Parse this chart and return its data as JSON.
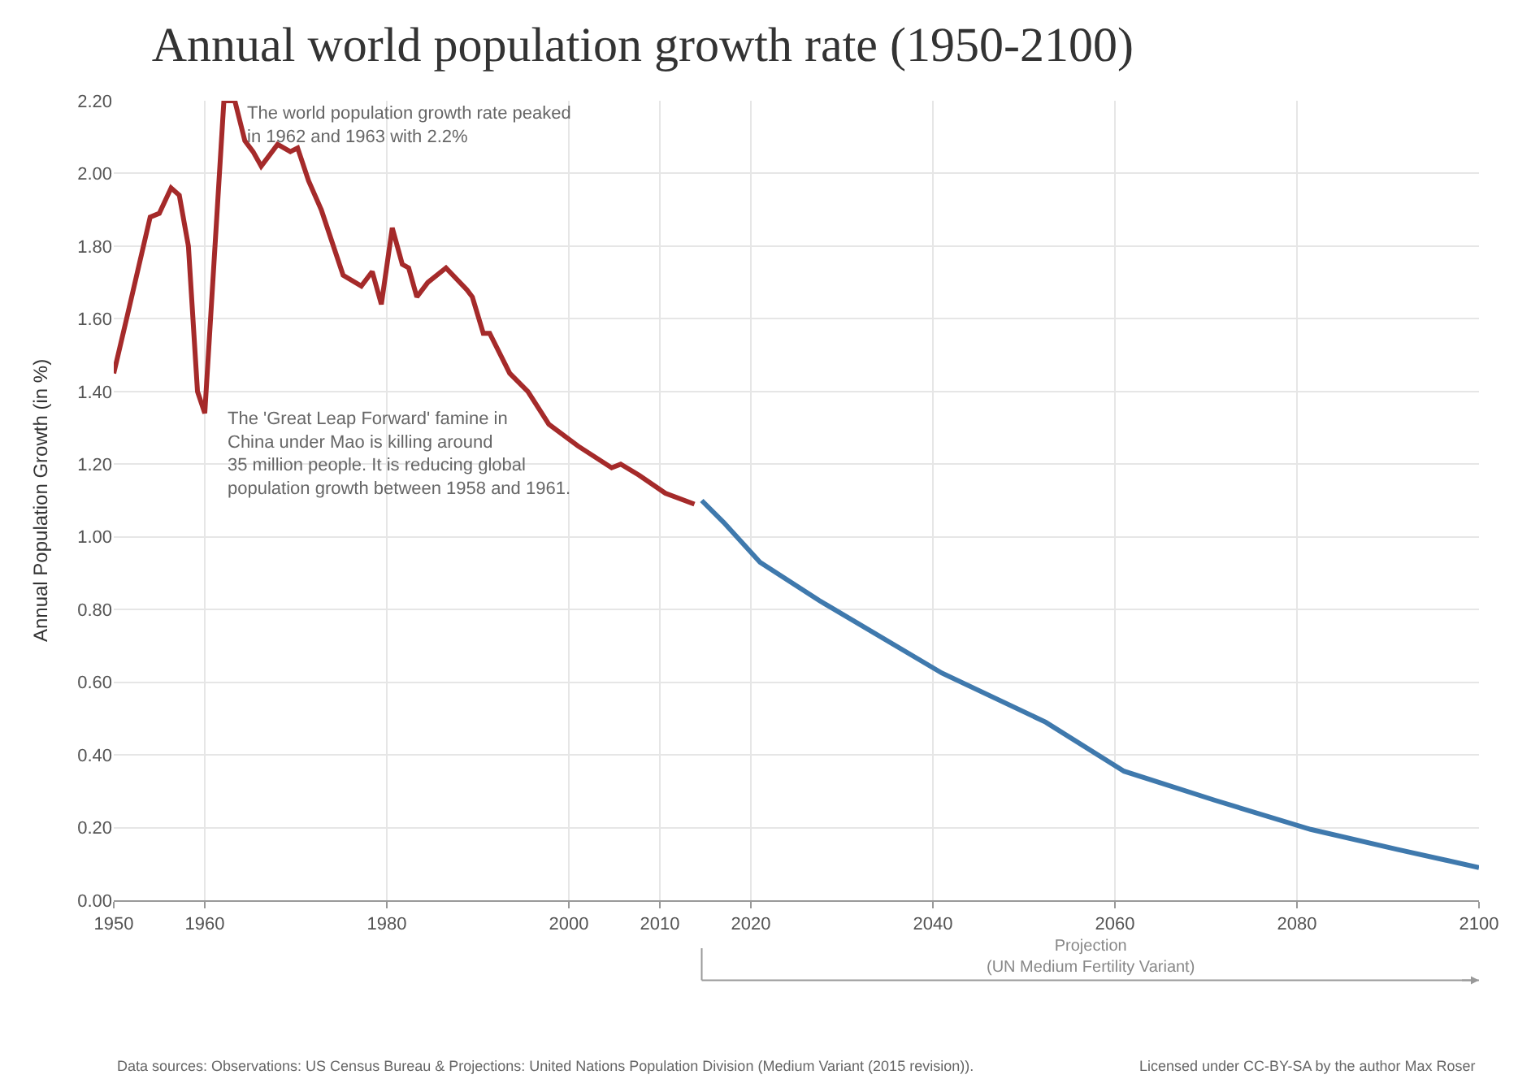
{
  "chart_data": {
    "type": "line",
    "title": "Annual world population growth rate (1950-2100)",
    "ylabel": "Annual Population Growth (in %)",
    "series": [
      {
        "color": "#a52a2a",
        "x": [
          1950,
          1951.5,
          1954,
          1955,
          1956.3,
          1957.2,
          1958.2,
          1959.2,
          1960,
          1962.1,
          1963.3,
          1964.4,
          1965.3,
          1966.2,
          1968,
          1969.4,
          1970.2,
          1971.4,
          1972.8,
          1975.2,
          1977.2,
          1978.4,
          1979.4,
          1980.6,
          1981.7,
          1982.4,
          1983.3,
          1984.5,
          1986.5,
          1988.8,
          1989.4,
          1990.6,
          1991.3,
          1993.5,
          1995.5,
          1997.8,
          2001,
          2004.7,
          2005.7,
          2007.7,
          2010.6,
          2013.8
        ],
        "values": [
          1.45,
          1.61,
          1.88,
          1.89,
          1.96,
          1.94,
          1.8,
          1.4,
          1.34,
          2.2,
          2.2,
          2.09,
          2.06,
          2.02,
          2.08,
          2.06,
          2.07,
          1.98,
          1.9,
          1.72,
          1.69,
          1.73,
          1.64,
          1.85,
          1.75,
          1.74,
          1.66,
          1.7,
          1.74,
          1.68,
          1.66,
          1.56,
          1.56,
          1.45,
          1.4,
          1.31,
          1.25,
          1.19,
          1.2,
          1.17,
          1.12,
          1.09
        ]
      },
      {
        "color": "#3f79ad",
        "x": [
          2014.6,
          2017,
          2021,
          2027.5,
          2041,
          2052.4,
          2061,
          2071,
          2081.5,
          2091,
          2100
        ],
        "values": [
          1.1,
          1.04,
          0.93,
          0.825,
          0.625,
          0.49,
          0.355,
          0.275,
          0.195,
          0.14,
          0.09
        ]
      }
    ],
    "xlim": [
      1950,
      2100
    ],
    "xticks": [
      1950,
      1960,
      1980,
      2000,
      2010,
      2020,
      2040,
      2060,
      2080,
      2100
    ],
    "ylim": [
      0,
      2.2
    ],
    "yticks": [
      {
        "value": 0,
        "label": "0.00"
      },
      {
        "value": 0.2,
        "label": "0.20"
      },
      {
        "value": 0.4,
        "label": "0.40"
      },
      {
        "value": 0.6,
        "label": "0.60"
      },
      {
        "value": 0.8,
        "label": "0.80"
      },
      {
        "value": 1,
        "label": "1.00"
      },
      {
        "value": 1.2,
        "label": "1.20"
      },
      {
        "value": 1.4,
        "label": "1.40"
      },
      {
        "value": 1.6,
        "label": "1.60"
      },
      {
        "value": 1.8,
        "label": "1.80"
      },
      {
        "value": 2,
        "label": "2.00"
      },
      {
        "value": 2.2,
        "label": "2.20"
      }
    ],
    "grid": true,
    "marker": "none",
    "line_style": "solid",
    "annotations": [
      "Projection\n(UN Medium Fertility Variant)",
      {
        "text": "The world population growth rate peaked\nin 1962 and 1963 with 2.2%",
        "x": 1963.3,
        "y": 2.2
      },
      {
        "text": "The 'Great Leap Forward' famine in\nChina under Mao is killing around\n35 million people. It is reducing global\npopulation growth between 1958 and 1961.",
        "x": 1961,
        "y": 1.36
      },
      "Data sources: Observations: US Census Bureau & Projections: United Nations Population Division (Medium Variant (2015 revision)).",
      "Licensed under CC-BY-SA by the author Max Roser"
    ]
  }
}
